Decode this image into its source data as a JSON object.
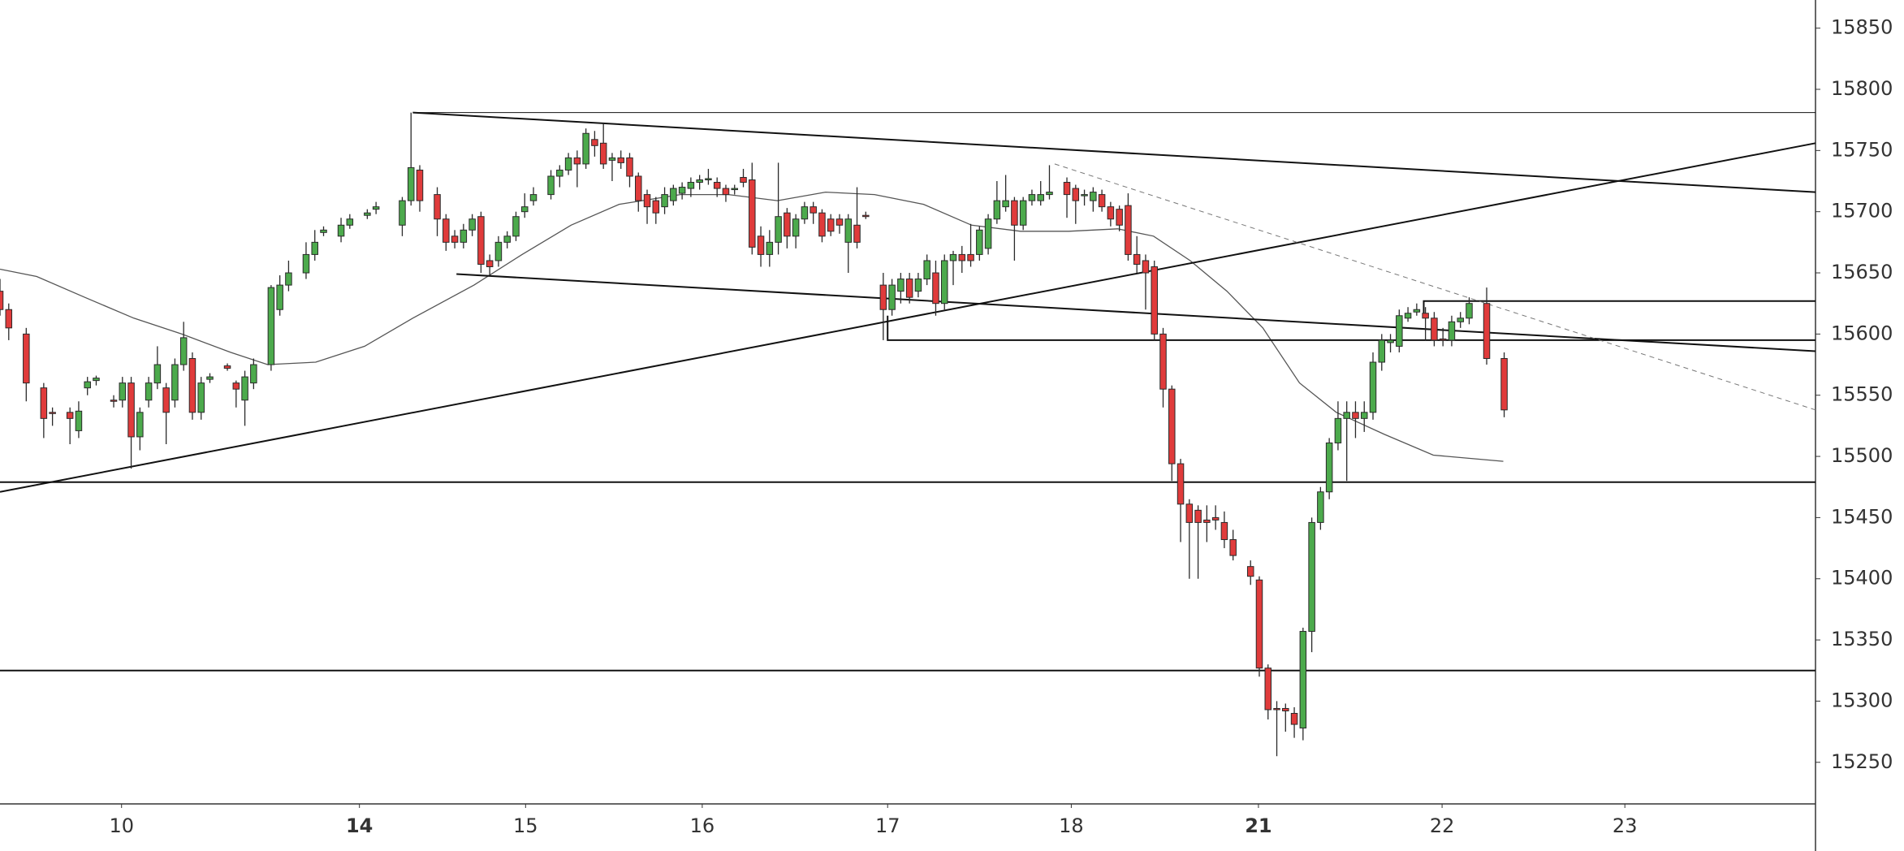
{
  "chart_data": {
    "type": "candlestick",
    "up_color": "#4caa4c",
    "down_color": "#e03b3b",
    "edge_color": "#2a2a2a",
    "xlim": [
      0,
      207.6
    ],
    "ylim": [
      15216,
      15873
    ],
    "yticks": [
      15250,
      15300,
      15350,
      15400,
      15450,
      15500,
      15550,
      15600,
      15650,
      15700,
      15750,
      15800,
      15850
    ],
    "xticks": [
      {
        "value": 13.9,
        "label": "10"
      },
      {
        "value": 41.1,
        "label": "14",
        "weight": "bold"
      },
      {
        "value": 60.1,
        "label": "15"
      },
      {
        "value": 80.3,
        "label": "16"
      },
      {
        "value": 101.5,
        "label": "17"
      },
      {
        "value": 122.5,
        "label": "18"
      },
      {
        "value": 143.9,
        "label": "21",
        "weight": "bold"
      },
      {
        "value": 164.9,
        "label": "22"
      },
      {
        "value": 185.8,
        "label": "23"
      }
    ],
    "x": [
      0,
      1,
      3,
      5,
      6,
      8,
      9,
      10,
      11,
      13,
      14,
      15,
      16,
      17,
      18,
      19,
      20,
      21,
      22,
      23,
      24,
      26,
      27,
      28,
      29,
      31,
      32,
      33,
      35,
      36,
      37,
      39,
      40,
      42,
      43,
      46,
      47,
      48,
      50,
      51,
      52,
      53,
      54,
      55,
      56,
      57,
      58,
      59,
      60,
      61,
      63,
      64,
      65,
      66,
      67,
      68,
      69,
      70,
      71,
      72,
      73,
      74,
      75,
      76,
      77,
      78,
      79,
      80,
      81,
      82,
      83,
      84,
      85,
      86,
      87,
      88,
      89,
      90,
      91,
      92,
      93,
      94,
      95,
      96,
      97,
      98,
      99,
      101,
      102,
      103,
      104,
      105,
      106,
      107,
      108,
      109,
      110,
      111,
      112,
      113,
      114,
      115,
      116,
      117,
      118,
      119,
      120,
      122,
      123,
      124,
      125,
      126,
      127,
      128,
      129,
      130,
      131,
      132,
      133,
      134,
      135,
      136,
      137,
      138,
      139,
      140,
      141,
      143,
      144,
      145,
      146,
      147,
      148,
      149,
      150,
      151,
      152,
      153,
      154,
      155,
      156,
      157,
      158,
      159,
      160,
      161,
      162,
      163,
      164,
      165,
      166,
      167,
      168,
      170,
      172
    ],
    "open": [
      15635,
      15620,
      15600,
      15556,
      15536,
      15536,
      15521,
      15556,
      15562,
      15546,
      15546,
      15560,
      15516,
      15546,
      15560,
      15556,
      15546,
      15575,
      15580,
      15536,
      15563,
      15574,
      15560,
      15546,
      15560,
      15575,
      15620,
      15640,
      15650,
      15665,
      15683,
      15680,
      15689,
      15697,
      15702,
      15689,
      15709,
      15734,
      15714,
      15694,
      15680,
      15675,
      15685,
      15696,
      15660,
      15660,
      15675,
      15680,
      15700,
      15709,
      15714,
      15729,
      15734,
      15744,
      15739,
      15759,
      15756,
      15742,
      15744,
      15744,
      15729,
      15714,
      15709,
      15704,
      15709,
      15715,
      15719,
      15724,
      15726,
      15724,
      15719,
      15718,
      15728,
      15726,
      15680,
      15665,
      15675,
      15699,
      15680,
      15694,
      15704,
      15699,
      15694,
      15694,
      15675,
      15689,
      15697,
      15640,
      15620,
      15635,
      15645,
      15635,
      15645,
      15650,
      15625,
      15660,
      15665,
      15665,
      15665,
      15670,
      15694,
      15704,
      15709,
      15689,
      15709,
      15709,
      15714,
      15724,
      15719,
      15713,
      15709,
      15714,
      15704,
      15702,
      15705,
      15665,
      15660,
      15655,
      15600,
      15555,
      15494,
      15461,
      15456,
      15448,
      15450,
      15446,
      15432,
      15410,
      15399,
      15327,
      15294,
      15294,
      15290,
      15278,
      15357,
      15446,
      15471,
      15511,
      15531,
      15536,
      15531,
      15536,
      15577,
      15593,
      15590,
      15613,
      15618,
      15617,
      15613,
      15596,
      15595,
      15610,
      15613,
      15625,
      15580
    ],
    "high": [
      15645,
      15625,
      15605,
      15560,
      15540,
      15540,
      15545,
      15565,
      15566,
      15550,
      15565,
      15565,
      15540,
      15565,
      15590,
      15560,
      15580,
      15610,
      15585,
      15565,
      15568,
      15576,
      15562,
      15570,
      15580,
      15640,
      15648,
      15660,
      15675,
      15685,
      15688,
      15695,
      15698,
      15702,
      15708,
      15712,
      15781,
      15738,
      15720,
      15698,
      15685,
      15690,
      15698,
      15700,
      15665,
      15680,
      15684,
      15700,
      15715,
      15720,
      15734,
      15738,
      15748,
      15750,
      15768,
      15766,
      15772,
      15748,
      15750,
      15748,
      15732,
      15718,
      15712,
      15720,
      15722,
      15724,
      15728,
      15730,
      15735,
      15728,
      15722,
      15722,
      15735,
      15740,
      15688,
      15685,
      15740,
      15703,
      15698,
      15708,
      15708,
      15702,
      15698,
      15698,
      15698,
      15720,
      15700,
      15650,
      15645,
      15650,
      15650,
      15650,
      15665,
      15660,
      15665,
      15668,
      15672,
      15690,
      15688,
      15698,
      15725,
      15730,
      15712,
      15712,
      15718,
      15725,
      15738,
      15728,
      15722,
      15718,
      15720,
      15718,
      15708,
      15705,
      15715,
      15680,
      15665,
      15660,
      15605,
      15558,
      15498,
      15465,
      15460,
      15460,
      15460,
      15455,
      15440,
      15415,
      15402,
      15330,
      15300,
      15298,
      15295,
      15360,
      15450,
      15475,
      15515,
      15545,
      15545,
      15545,
      15545,
      15585,
      15600,
      15600,
      15620,
      15622,
      15625,
      15622,
      15618,
      15605,
      15615,
      15618,
      15630,
      15638,
      15585
    ],
    "low": [
      15615,
      15595,
      15545,
      15515,
      15525,
      15510,
      15515,
      15550,
      15558,
      15540,
      15540,
      15490,
      15505,
      15540,
      15555,
      15510,
      15540,
      15570,
      15530,
      15530,
      15560,
      15570,
      15540,
      15525,
      15555,
      15570,
      15615,
      15635,
      15645,
      15660,
      15680,
      15675,
      15686,
      15694,
      15698,
      15680,
      15705,
      15700,
      15680,
      15668,
      15670,
      15670,
      15680,
      15650,
      15648,
      15655,
      15670,
      15676,
      15695,
      15705,
      15710,
      15720,
      15730,
      15720,
      15735,
      15745,
      15735,
      15725,
      15735,
      15720,
      15700,
      15690,
      15690,
      15698,
      15705,
      15710,
      15712,
      15718,
      15722,
      15712,
      15708,
      15714,
      15720,
      15665,
      15655,
      15655,
      15665,
      15670,
      15670,
      15690,
      15690,
      15675,
      15680,
      15682,
      15650,
      15670,
      15694,
      15595,
      15615,
      15625,
      15625,
      15630,
      15640,
      15615,
      15620,
      15640,
      15650,
      15655,
      15660,
      15665,
      15690,
      15700,
      15660,
      15685,
      15705,
      15705,
      15710,
      15695,
      15690,
      15705,
      15700,
      15700,
      15688,
      15684,
      15660,
      15650,
      15620,
      15595,
      15540,
      15480,
      15430,
      15400,
      15400,
      15430,
      15440,
      15425,
      15415,
      15395,
      15320,
      15285,
      15255,
      15275,
      15270,
      15268,
      15340,
      15440,
      15465,
      15505,
      15480,
      15515,
      15520,
      15530,
      15570,
      15585,
      15585,
      15610,
      15615,
      15595,
      15590,
      15590,
      15590,
      15605,
      15608,
      15575,
      15532
    ],
    "close": [
      15620,
      15605,
      15560,
      15531,
      15535,
      15531,
      15537,
      15561,
      15564,
      15545,
      15560,
      15516,
      15536,
      15560,
      15575,
      15536,
      15575,
      15597,
      15536,
      15560,
      15565,
      15572,
      15555,
      15565,
      15575,
      15638,
      15640,
      15650,
      15665,
      15675,
      15685,
      15689,
      15694,
      15699,
      15704,
      15709,
      15736,
      15709,
      15694,
      15675,
      15675,
      15685,
      15694,
      15657,
      15655,
      15675,
      15680,
      15696,
      15704,
      15714,
      15729,
      15734,
      15744,
      15739,
      15764,
      15754,
      15739,
      15744,
      15740,
      15729,
      15709,
      15704,
      15699,
      15714,
      15719,
      15720,
      15724,
      15726,
      15727,
      15719,
      15714,
      15719,
      15724,
      15671,
      15665,
      15675,
      15696,
      15680,
      15694,
      15704,
      15699,
      15680,
      15684,
      15689,
      15694,
      15675,
      15696,
      15620,
      15640,
      15645,
      15630,
      15645,
      15660,
      15625,
      15660,
      15665,
      15660,
      15660,
      15685,
      15694,
      15709,
      15709,
      15689,
      15709,
      15714,
      15714,
      15716,
      15714,
      15709,
      15714,
      15716,
      15704,
      15694,
      15689,
      15665,
      15657,
      15650,
      15600,
      15555,
      15494,
      15461,
      15446,
      15446,
      15446,
      15448,
      15432,
      15419,
      15402,
      15327,
      15293,
      15293,
      15292,
      15281,
      15357,
      15446,
      15471,
      15511,
      15531,
      15536,
      15531,
      15536,
      15577,
      15595,
      15595,
      15615,
      15617,
      15620,
      15613,
      15595,
      15595,
      15610,
      15613,
      15625,
      15580,
      15538
    ],
    "ma": {
      "color": "#555555",
      "x": [
        0,
        4.2,
        9.7,
        15.3,
        20.8,
        26.4,
        30.6,
        36.1,
        41.7,
        47.2,
        54.2,
        59.7,
        65.3,
        70.8,
        77.8,
        83.3,
        88.9,
        94.4,
        100,
        105.6,
        111.1,
        116.7,
        122.2,
        127.8,
        131.9,
        136.1,
        140.3,
        144.4,
        148.6,
        152.8,
        158.3,
        163.9,
        171.9
      ],
      "values": [
        15653,
        15647,
        15630,
        15613,
        15600,
        15585,
        15575,
        15577,
        15590,
        15613,
        15640,
        15665,
        15689,
        15706,
        15714,
        15714,
        15709,
        15716,
        15714,
        15706,
        15689,
        15684,
        15684,
        15686,
        15680,
        15660,
        15635,
        15605,
        15560,
        15536,
        15518,
        15501,
        15496
      ]
    },
    "drawings": [
      {
        "style": "thin",
        "x": [
          47.2,
          207.6
        ],
        "y": [
          15781,
          15781
        ]
      },
      {
        "style": "solid",
        "x": [
          47.2,
          207.6
        ],
        "y": [
          15781,
          15716
        ]
      },
      {
        "style": "solid",
        "x": [
          0,
          207.6
        ],
        "y": [
          15471,
          15756
        ]
      },
      {
        "style": "solid",
        "x": [
          52.2,
          207.6
        ],
        "y": [
          15649,
          15586
        ]
      },
      {
        "style": "solid",
        "x": [
          0,
          207.6
        ],
        "y": [
          15479,
          15479
        ]
      },
      {
        "style": "solid",
        "x": [
          0,
          207.6
        ],
        "y": [
          15325,
          15325
        ]
      },
      {
        "style": "solid",
        "x": [
          101.5,
          101.5,
          207.6
        ],
        "y": [
          15615,
          15595,
          15595
        ]
      },
      {
        "style": "solid",
        "x": [
          162.8,
          162.8,
          207.6
        ],
        "y": [
          15617,
          15627,
          15627
        ]
      },
      {
        "style": "dashed",
        "x": [
          120.6,
          207.6
        ],
        "y": [
          15739,
          15538
        ]
      }
    ]
  }
}
